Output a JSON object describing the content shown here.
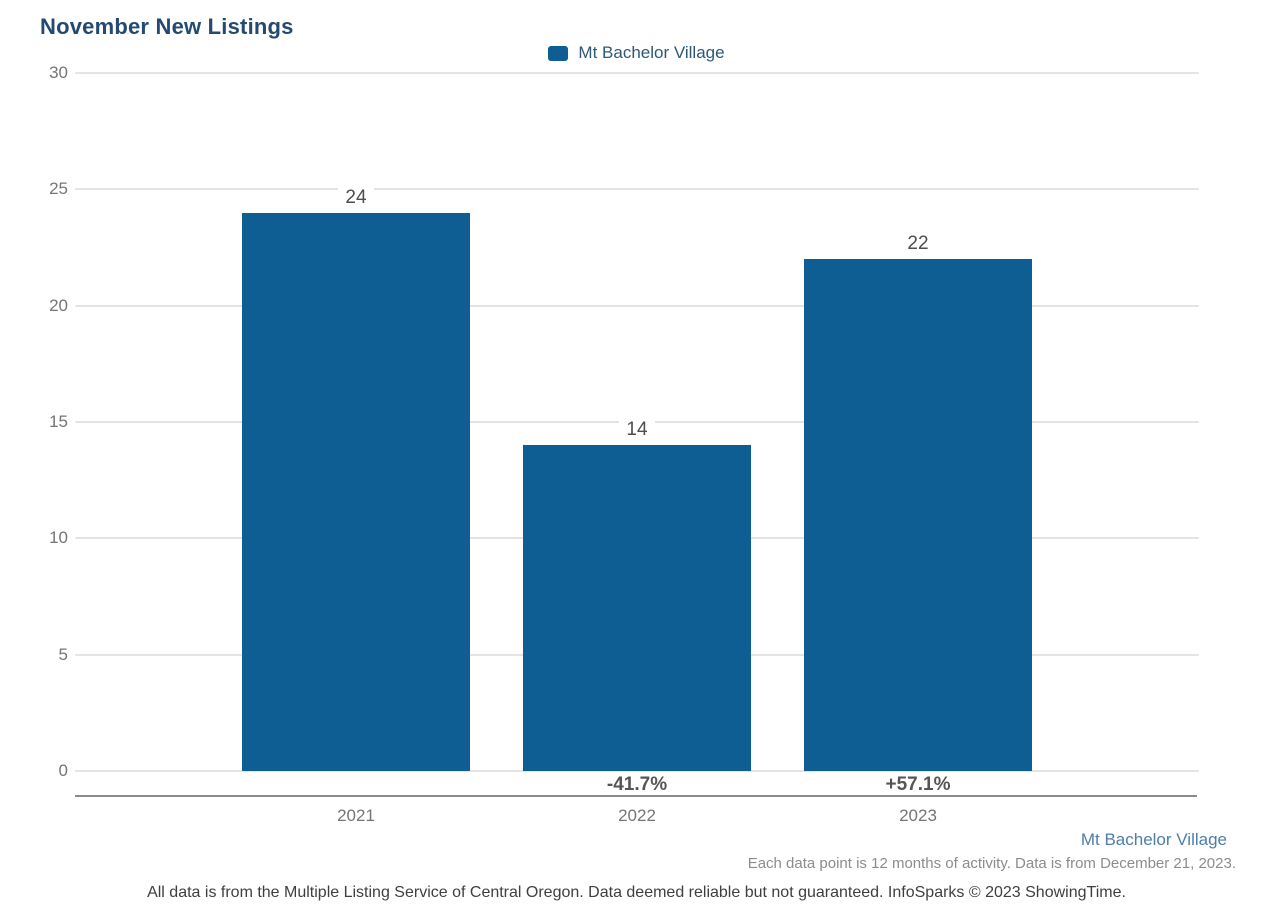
{
  "page": {
    "title": "November New Listings"
  },
  "legend": {
    "label": "Mt Bachelor Village"
  },
  "footer": {
    "series_label": "Mt Bachelor Village",
    "note_activity": "Each data point is 12 months of activity. Data is from December 21, 2023.",
    "note_disclaimer": "All data is from the Multiple Listing Service of Central Oregon. Data deemed reliable but not guaranteed. InfoSparks © 2023 ShowingTime."
  },
  "colors": {
    "bar": "#0E5E94",
    "title": "#254A72",
    "legend_text": "#2D5977",
    "axis_label": "#757575",
    "value_label": "#4D4D4D",
    "pct_label": "#555555",
    "gridline": "#E4E4E4",
    "axis_line": "#8A8A8A",
    "footer_link": "#4D7EAC",
    "note_activity": "#8C8C8C",
    "note_disclaimer": "#3F3F3F"
  },
  "chart_data": {
    "type": "bar",
    "title": "November New Listings",
    "categories": [
      "2021",
      "2022",
      "2023"
    ],
    "series": [
      {
        "name": "Mt Bachelor Village",
        "values": [
          24,
          14,
          22
        ]
      }
    ],
    "bar_value_labels": [
      "24",
      "14",
      "22"
    ],
    "pct_change_labels": [
      null,
      "-41.7%",
      "+57.1%"
    ],
    "y_ticks": [
      30,
      25,
      20,
      15,
      10,
      5,
      0
    ],
    "ylim": [
      0,
      30
    ],
    "grid": true,
    "legend_position": "top-center"
  }
}
